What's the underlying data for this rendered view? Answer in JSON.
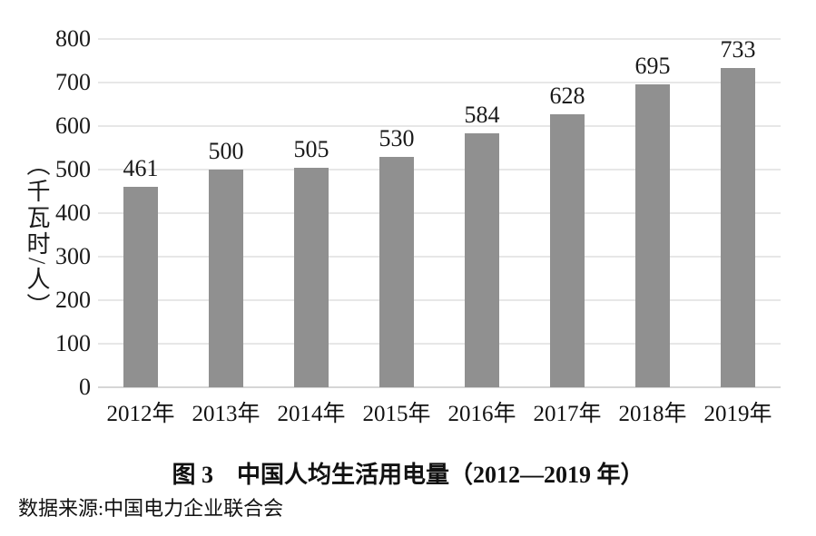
{
  "figure": {
    "caption": "图 3　中国人均生活用电量（2012—2019 年）",
    "source": "数据来源:中国电力企业联合会"
  },
  "chart_data": {
    "type": "bar",
    "categories": [
      "2012年",
      "2013年",
      "2014年",
      "2015年",
      "2016年",
      "2017年",
      "2018年",
      "2019年"
    ],
    "values": [
      461,
      500,
      505,
      530,
      584,
      628,
      695,
      733
    ],
    "title": "图 3　中国人均生活用电量（2012—2019 年）",
    "xlabel": "",
    "ylabel": "（千瓦时/人）",
    "ylim": [
      0,
      800
    ],
    "yticks": [
      0,
      100,
      200,
      300,
      400,
      500,
      600,
      700,
      800
    ],
    "grid": true,
    "legend": "none",
    "data_labels": true,
    "bar_color": "#909090",
    "gridline_color": "#e7e7e7",
    "baseline_color": "#d6d6d6",
    "text_color": "#1a1a1a",
    "background_color": "#ffffff"
  }
}
